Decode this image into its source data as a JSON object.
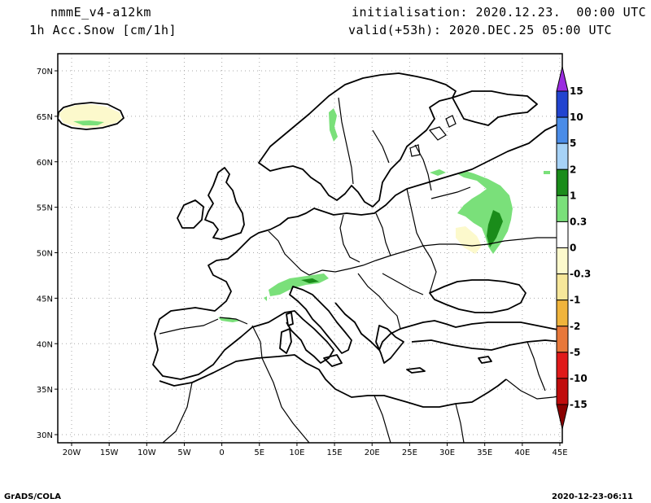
{
  "header": {
    "model": "nmmE_v4-a12km",
    "field": "1h Acc.Snow [cm/1h]",
    "init": "initialisation: 2020.12.23.  00:00 UTC",
    "valid": "valid(+53h): 2020.DEC.25 05:00 UTC"
  },
  "axes": {
    "lat_labels": [
      "70N",
      "65N",
      "60N",
      "55N",
      "50N",
      "45N",
      "40N",
      "35N",
      "30N"
    ],
    "lon_labels": [
      "20W",
      "15W",
      "10W",
      "5W",
      "0",
      "5E",
      "10E",
      "15E",
      "20E",
      "25E",
      "30E",
      "35E",
      "40E",
      "45E"
    ]
  },
  "colorbar": {
    "labels": [
      "15",
      "10",
      "5",
      "2",
      "1",
      "0.3",
      "0",
      "-0.3",
      "-1",
      "-2",
      "-5",
      "-10",
      "-15"
    ],
    "colors": [
      "#9a2be0",
      "#2244d0",
      "#4a8ce8",
      "#a6d2f7",
      "#1a8c1a",
      "#7ae07a",
      "#ffffff",
      "#fcf9cc",
      "#f7e79a",
      "#f0b43c",
      "#e8783a",
      "#e01a1a",
      "#c00c0c",
      "#8a0000"
    ]
  },
  "map": {
    "region": "Europe",
    "lat_range": [
      29.5,
      71.5
    ],
    "lon_range": [
      -22,
      45
    ],
    "snow_colors": {
      "light": "#7ae07a",
      "moderate": "#1a8c1a",
      "melt": "#fcf9cc"
    }
  },
  "footer": {
    "left": "GrADS/COLA",
    "right": "2020-12-23-06:11"
  }
}
